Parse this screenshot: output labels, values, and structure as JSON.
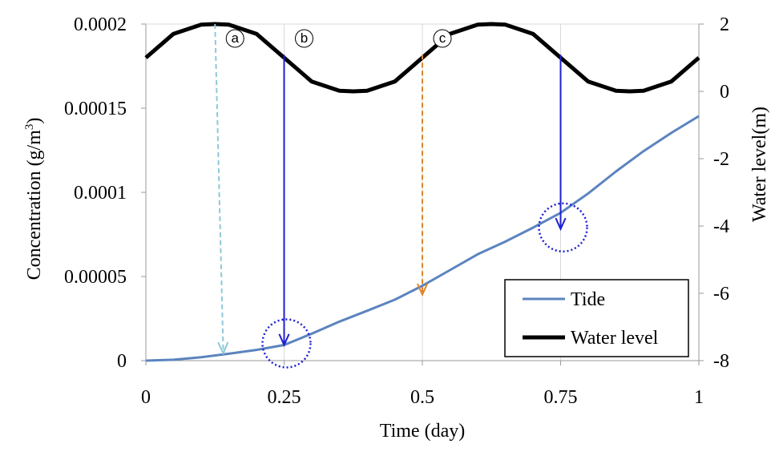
{
  "chart_data": {
    "type": "line",
    "xlabel": "Time (day)",
    "ylabel": "Concentration (g/m",
    "ylabel_sup": "3",
    "ylabel_tail": ")",
    "y2label": "Water level(m)",
    "xlim": [
      0,
      1
    ],
    "ylim": [
      0,
      0.0002
    ],
    "y2lim": [
      -8,
      2
    ],
    "x_ticks": [
      0,
      0.25,
      0.5,
      0.75,
      1
    ],
    "x_tick_labels": [
      "0",
      "0.25",
      "0.5",
      "0.75",
      "1"
    ],
    "y_ticks": [
      0,
      5e-05,
      0.0001,
      0.00015,
      0.0002
    ],
    "y_tick_labels": [
      "0",
      "0.00005",
      "0.0001",
      "0.00015",
      "0.0002"
    ],
    "y2_ticks": [
      -8,
      -6,
      -4,
      -2,
      0,
      2
    ],
    "y2_tick_labels": [
      "-8",
      "-6",
      "-4",
      "-2",
      "0",
      "2"
    ],
    "grid": "vertical",
    "legend_position": "bottom-right",
    "series": [
      {
        "name": "Tide",
        "axis": "left",
        "color": "#5b84bf",
        "x": [
          0,
          0.05,
          0.1,
          0.15,
          0.2,
          0.25,
          0.3,
          0.35,
          0.4,
          0.45,
          0.5,
          0.55,
          0.6,
          0.65,
          0.7,
          0.75,
          0.8,
          0.85,
          0.9,
          0.95,
          1.0
        ],
        "y": [
          0,
          5e-07,
          2e-06,
          4.1e-06,
          6.4e-06,
          9.3e-06,
          1.6e-05,
          2.32e-05,
          2.96e-05,
          3.62e-05,
          4.45e-05,
          5.38e-05,
          6.32e-05,
          7.07e-05,
          7.9e-05,
          8.78e-05,
          9.94e-05,
          0.0001124,
          0.0001245,
          0.0001353,
          0.0001453
        ]
      },
      {
        "name": "Water level",
        "axis": "right",
        "color": "#000000",
        "x": [
          0,
          0.05,
          0.1,
          0.125,
          0.15,
          0.2,
          0.25,
          0.3,
          0.35,
          0.375,
          0.4,
          0.45,
          0.5,
          0.55,
          0.6,
          0.625,
          0.65,
          0.7,
          0.75,
          0.8,
          0.85,
          0.875,
          0.9,
          0.95,
          1.0
        ],
        "y": [
          1.0,
          1.71,
          1.98,
          2.0,
          1.98,
          1.71,
          1.0,
          0.29,
          0.02,
          0.0,
          0.02,
          0.29,
          1.0,
          1.71,
          1.98,
          2.0,
          1.98,
          1.71,
          1.0,
          0.29,
          0.02,
          0.0,
          0.02,
          0.29,
          1.0
        ]
      }
    ],
    "annotations": [
      {
        "label": "a",
        "x": 0.125,
        "x_end": 0.14,
        "y_top": 0.0002,
        "y_end": 4.4e-06,
        "style": "dashed",
        "color": "#8ec9d8"
      },
      {
        "label": "b",
        "x": 0.25,
        "x_end": 0.25,
        "y_top": 0.0001818,
        "y_end": 9.3e-06,
        "style": "solid",
        "color": "#1f1fd1",
        "circle": true
      },
      {
        "label": "c",
        "x": 0.5,
        "x_end": 0.5,
        "y_top": 0.0001818,
        "y_end": 3.92e-05,
        "style": "dashed",
        "color": "#e0812a"
      },
      {
        "label": "",
        "x": 0.75,
        "x_end": 0.75,
        "y_top": 0.0001818,
        "y_end": 7.82e-05,
        "style": "solid",
        "color": "#1f1fd1",
        "circle": true
      }
    ]
  }
}
